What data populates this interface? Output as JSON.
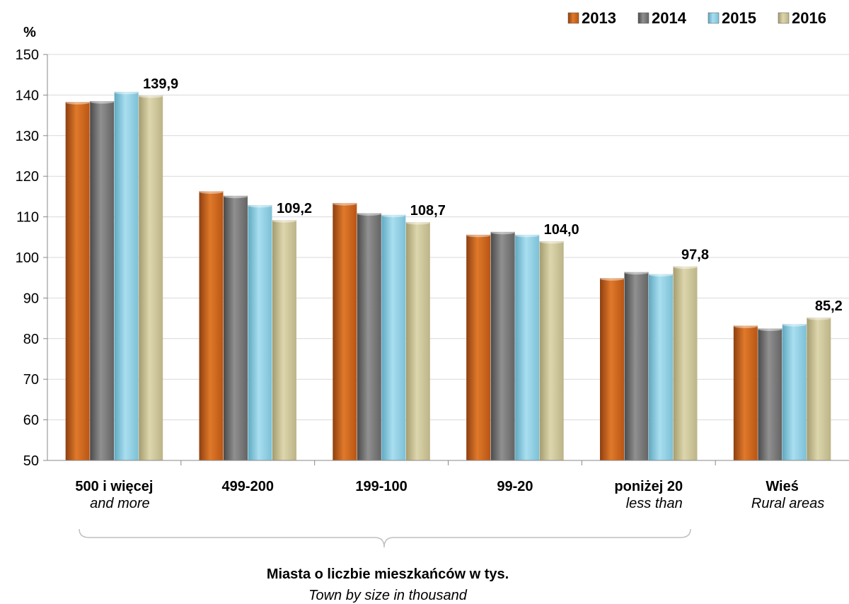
{
  "chart_data": {
    "type": "bar",
    "ylabel": "%",
    "ylim": [
      50,
      150
    ],
    "yticks": [
      50,
      60,
      70,
      80,
      90,
      100,
      110,
      120,
      130,
      140,
      150
    ],
    "grid": true,
    "legend_position": "top-right",
    "categories": [
      "500 i więcej",
      "499-200",
      "199-100",
      "99-20",
      "poniżej 20",
      "Wieś"
    ],
    "category_sublabels": [
      "and more",
      "",
      "",
      "",
      "less than",
      "Rural areas"
    ],
    "xlabel": "Miasta o liczbie mieszkańców w tys.",
    "xlabel_sub": "Town by size in thousand",
    "series": [
      {
        "name": "2013",
        "color": "#d2691e",
        "values": [
          138.3,
          116.3,
          113.4,
          105.6,
          94.9,
          83.2
        ]
      },
      {
        "name": "2014",
        "color": "#7f7f7f",
        "values": [
          138.5,
          115.2,
          110.9,
          106.3,
          96.4,
          82.5
        ]
      },
      {
        "name": "2015",
        "color": "#8fd0e3",
        "values": [
          140.8,
          112.9,
          110.5,
          105.6,
          95.9,
          83.6
        ]
      },
      {
        "name": "2016",
        "color": "#cfc79a",
        "values": [
          139.9,
          109.2,
          108.7,
          104.0,
          97.8,
          85.2
        ]
      }
    ],
    "data_labels": {
      "series": "2016",
      "values": [
        "139,9",
        "109,2",
        "108,7",
        "104,0",
        "97,8",
        "85,2"
      ]
    }
  }
}
